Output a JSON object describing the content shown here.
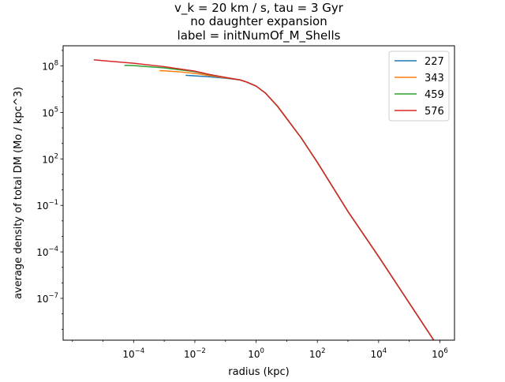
{
  "chart_data": {
    "type": "line",
    "title_lines": [
      "v_k = 20 km / s, tau = 3 Gyr",
      "no daughter expansion",
      "label = initNumOf_M_Shells"
    ],
    "xlabel": "radius (kpc)",
    "ylabel": "average density of total DM (Mo / kpc^3)",
    "xscale": "log",
    "yscale": "log",
    "xlim": [
      5e-07,
      3000000.0
    ],
    "ylim": [
      2e-10,
      2000000000.0
    ],
    "xticks": [
      {
        "value": 0.0001,
        "base": "10",
        "exp": "−4"
      },
      {
        "value": 0.01,
        "base": "10",
        "exp": "−2"
      },
      {
        "value": 1.0,
        "base": "10",
        "exp": "0"
      },
      {
        "value": 100.0,
        "base": "10",
        "exp": "2"
      },
      {
        "value": 10000.0,
        "base": "10",
        "exp": "4"
      },
      {
        "value": 1000000.0,
        "base": "10",
        "exp": "6"
      }
    ],
    "yticks": [
      {
        "value": 1e-07,
        "base": "10",
        "exp": "−7"
      },
      {
        "value": 0.0001,
        "base": "10",
        "exp": "−4"
      },
      {
        "value": 0.1,
        "base": "10",
        "exp": "−1"
      },
      {
        "value": 100.0,
        "base": "10",
        "exp": "2"
      },
      {
        "value": 100000.0,
        "base": "10",
        "exp": "5"
      },
      {
        "value": 100000000.0,
        "base": "10",
        "exp": "8"
      }
    ],
    "grid": false,
    "legend_position": "top-right",
    "series": [
      {
        "name": "227",
        "color": "#1f77b4",
        "x": [
          0.005,
          0.01,
          0.03,
          0.1,
          0.3,
          0.5,
          1,
          2,
          5,
          10,
          30,
          100,
          1000,
          10000,
          100000,
          1000000
        ],
        "y": [
          25000000.0,
          23000000.0,
          20000000.0,
          16000000.0,
          12500000.0,
          9000000.0,
          5000000.0,
          1800000.0,
          250000.0,
          40000.0,
          2200.0,
          60.0,
          0.04,
          5e-05,
          5e-08,
          5e-11
        ]
      },
      {
        "name": "343",
        "color": "#ff7f0e",
        "x": [
          0.0007,
          0.001,
          0.003,
          0.01,
          0.03,
          0.1,
          0.3,
          0.5,
          1,
          2,
          5,
          10,
          30,
          100,
          1000,
          10000,
          100000,
          1000000
        ],
        "y": [
          50000000.0,
          48000000.0,
          42000000.0,
          33000000.0,
          24000000.0,
          17000000.0,
          12500000.0,
          9000000.0,
          5000000.0,
          1800000.0,
          250000.0,
          40000.0,
          2200.0,
          60.0,
          0.04,
          5e-05,
          5e-08,
          5e-11
        ]
      },
      {
        "name": "459",
        "color": "#2ca02c",
        "x": [
          5e-05,
          0.0001,
          0.001,
          0.01,
          0.03,
          0.1,
          0.3,
          0.5,
          1,
          2,
          5,
          10,
          30,
          100,
          1000,
          10000,
          100000,
          1000000
        ],
        "y": [
          110000000.0,
          105000000.0,
          75000000.0,
          43000000.0,
          27000000.0,
          18000000.0,
          12500000.0,
          9000000.0,
          5000000.0,
          1800000.0,
          250000.0,
          40000.0,
          2200.0,
          60.0,
          0.04,
          5e-05,
          5e-08,
          5e-11
        ]
      },
      {
        "name": "576",
        "color": "#d62728",
        "x": [
          5e-06,
          1e-05,
          0.0001,
          0.001,
          0.01,
          0.03,
          0.1,
          0.3,
          0.5,
          1,
          2,
          5,
          10,
          30,
          100,
          1000,
          10000,
          100000,
          1000000
        ],
        "y": [
          250000000.0,
          220000000.0,
          150000000.0,
          90000000.0,
          46000000.0,
          28000000.0,
          18000000.0,
          12500000.0,
          9000000.0,
          5000000.0,
          1800000.0,
          250000.0,
          40000.0,
          2200.0,
          60.0,
          0.04,
          5e-05,
          5e-08,
          5e-11
        ]
      }
    ]
  }
}
